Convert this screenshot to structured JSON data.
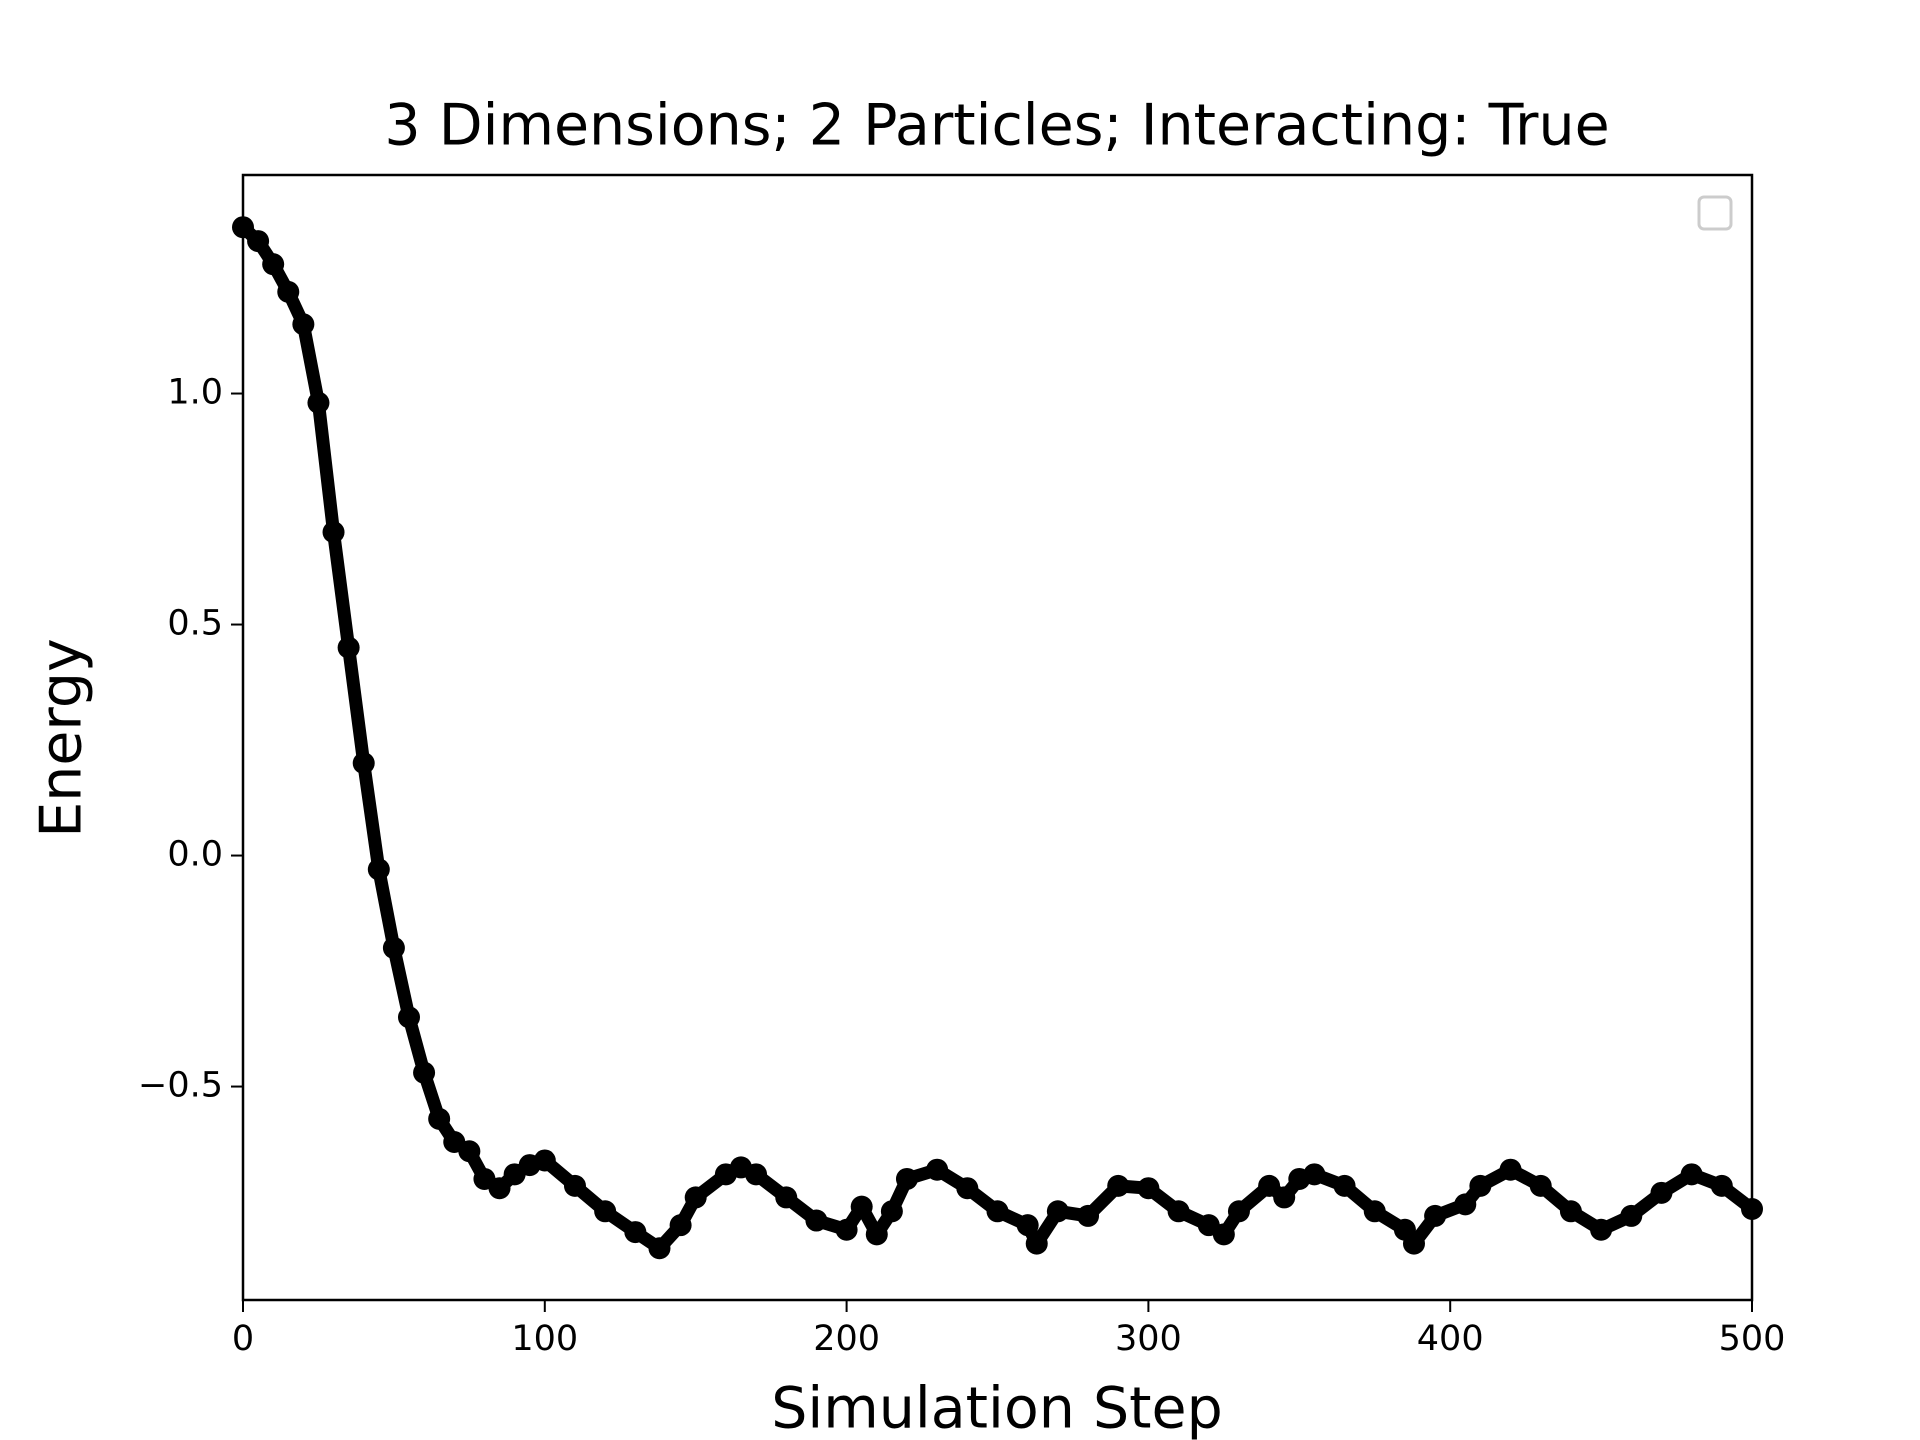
{
  "chart_data": {
    "type": "line",
    "title": "3 Dimensions; 2 Particles; Interacting: True",
    "x_label": "Simulation Step",
    "y_label": "Energy",
    "x": [
      0,
      5,
      10,
      15,
      20,
      25,
      30,
      35,
      40,
      45,
      50,
      55,
      60,
      65,
      70,
      75,
      80,
      85,
      90,
      95,
      100,
      110,
      120,
      130,
      138,
      145,
      150,
      160,
      165,
      170,
      180,
      190,
      200,
      205,
      210,
      215,
      220,
      230,
      240,
      250,
      260,
      263,
      270,
      280,
      290,
      300,
      310,
      320,
      325,
      330,
      340,
      345,
      350,
      355,
      365,
      375,
      385,
      388,
      395,
      405,
      410,
      420,
      430,
      440,
      450,
      460,
      470,
      480,
      490,
      500
    ],
    "series": [
      {
        "color": "#000000",
        "values": [
          1.36,
          1.33,
          1.28,
          1.22,
          1.15,
          0.98,
          0.7,
          0.45,
          0.2,
          -0.03,
          -0.2,
          -0.35,
          -0.47,
          -0.57,
          -0.62,
          -0.64,
          -0.7,
          -0.72,
          -0.69,
          -0.67,
          -0.66,
          -0.715,
          -0.77,
          -0.815,
          -0.85,
          -0.8,
          -0.74,
          -0.69,
          -0.675,
          -0.69,
          -0.74,
          -0.79,
          -0.81,
          -0.76,
          -0.82,
          -0.77,
          -0.7,
          -0.68,
          -0.72,
          -0.77,
          -0.8,
          -0.84,
          -0.77,
          -0.78,
          -0.715,
          -0.72,
          -0.77,
          -0.8,
          -0.82,
          -0.77,
          -0.715,
          -0.74,
          -0.7,
          -0.69,
          -0.715,
          -0.77,
          -0.81,
          -0.84,
          -0.78,
          -0.755,
          -0.715,
          -0.68,
          -0.715,
          -0.77,
          -0.81,
          -0.78,
          -0.73,
          -0.69,
          -0.715,
          -0.765
        ]
      }
    ],
    "xlim": [
      0,
      500
    ],
    "xticks": [
      0,
      100,
      200,
      300,
      400,
      500
    ],
    "ylim": [
      -0.962,
      1.473
    ],
    "yticks": [
      {
        "value": -0.5,
        "label": "−0.5"
      },
      {
        "value": 0,
        "label": "0.0"
      },
      0.5,
      {
        "value": 1,
        "label": "1.0"
      }
    ],
    "grid": false
  }
}
